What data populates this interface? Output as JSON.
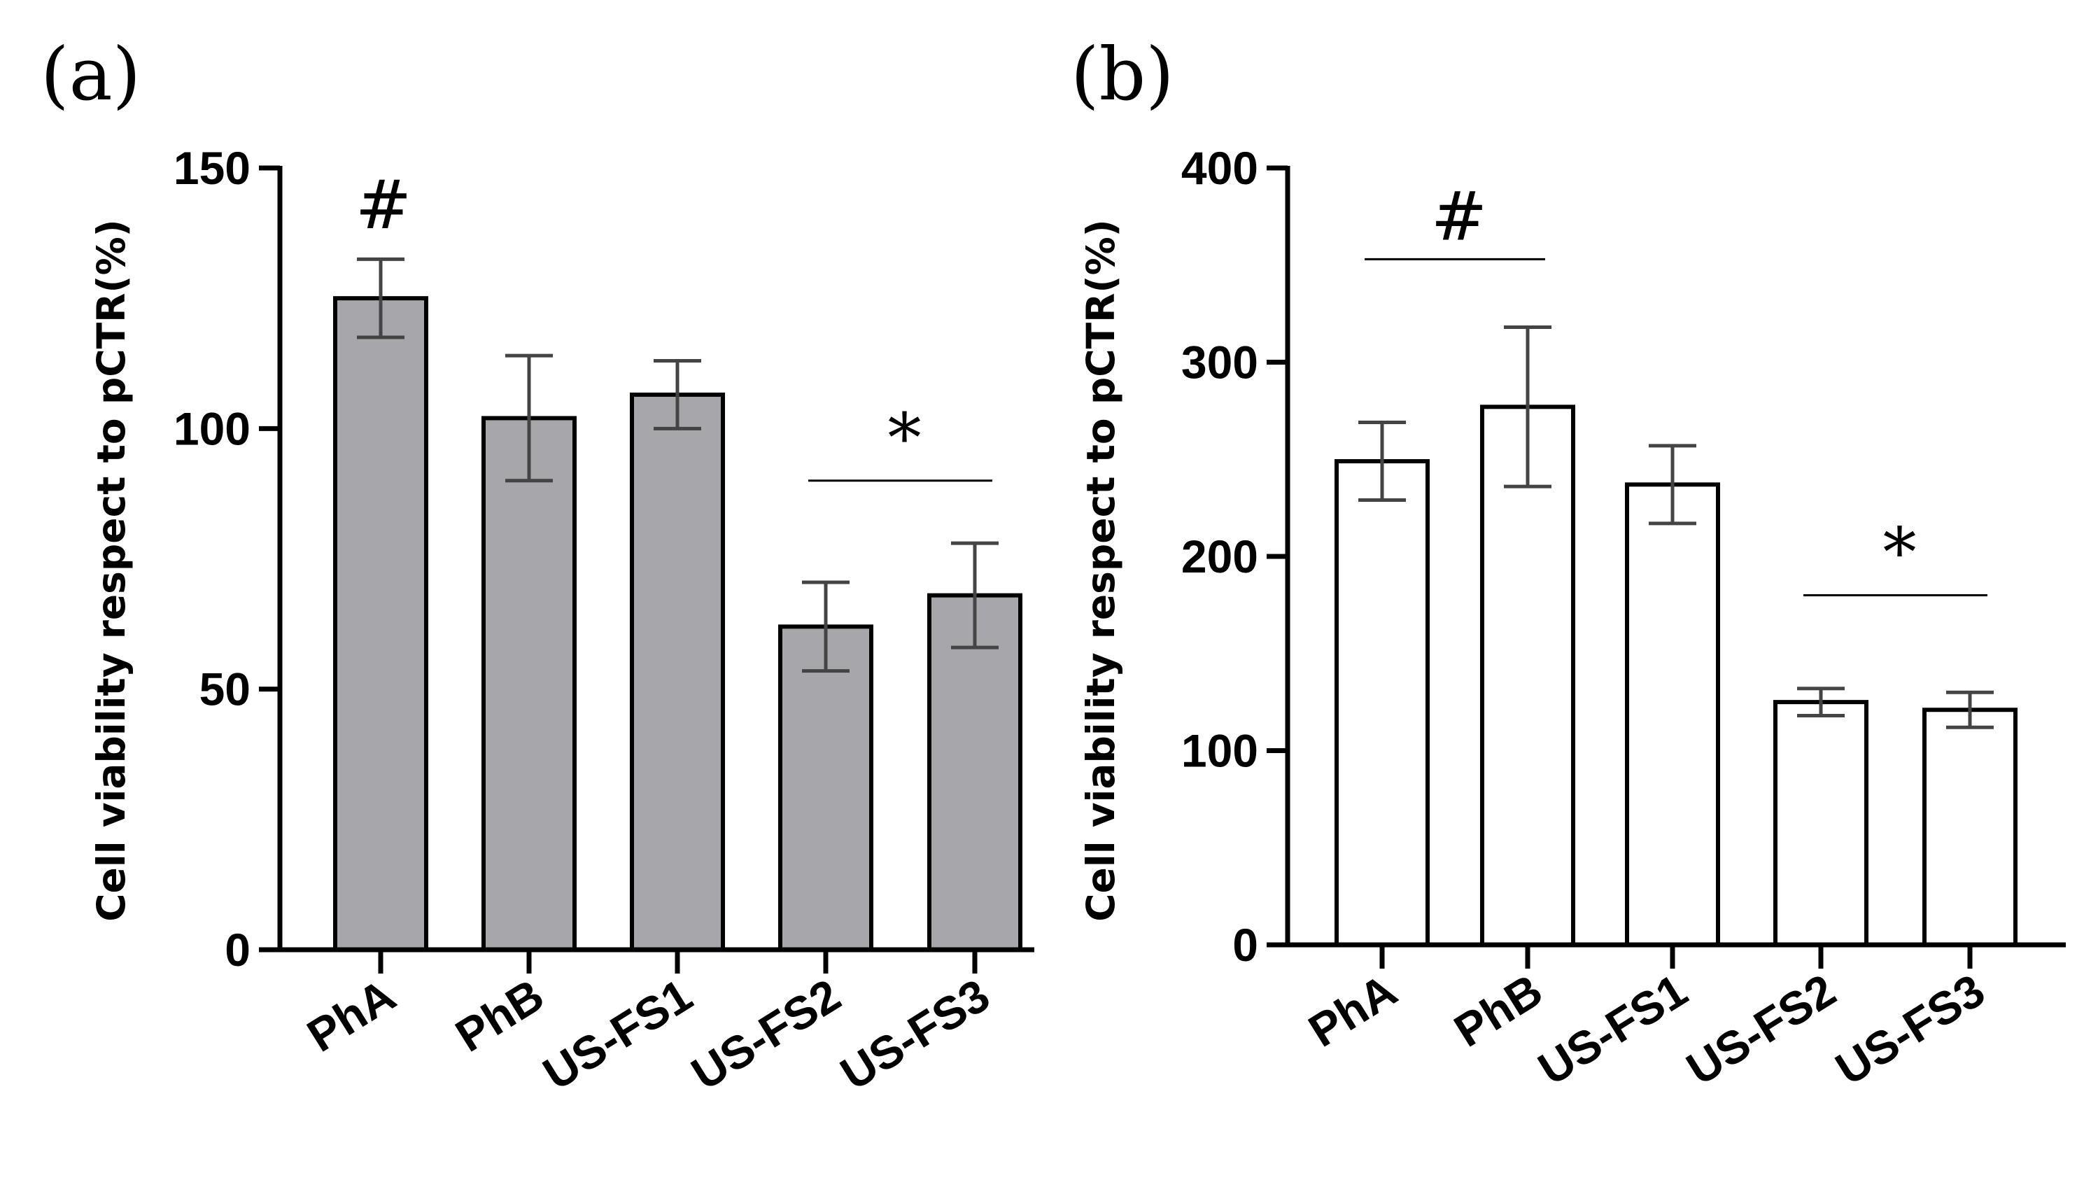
{
  "chart_data": [
    {
      "panel": "(a)",
      "type": "bar",
      "ylabel": "Cell viability respect to pCTR(%)",
      "ylim": [
        0,
        150
      ],
      "yticks": [
        "0",
        "50",
        "100",
        "150"
      ],
      "categories": [
        "PhA",
        "PhB",
        "US-FS1",
        "US-FS2",
        "US-FS3"
      ],
      "values": [
        125,
        102,
        106.5,
        62,
        68
      ],
      "errors": [
        7.5,
        12,
        6.5,
        8.5,
        10
      ],
      "bar_color": "#a7a6ab",
      "annotations": [
        {
          "symbol": "#",
          "categories": [
            "PhA"
          ],
          "value": 143,
          "line": false
        },
        {
          "symbol": "*",
          "categories": [
            "US-FS2",
            "US-FS3"
          ],
          "value": 90,
          "line": true
        }
      ]
    },
    {
      "panel": "(b)",
      "type": "bar",
      "ylabel": "Cell viability respect to pCTR(%)",
      "ylim": [
        0,
        400
      ],
      "yticks": [
        "0",
        "100",
        "200",
        "300",
        "400"
      ],
      "categories": [
        "PhA",
        "PhB",
        "US-FS1",
        "US-FS2",
        "US-FS3"
      ],
      "values": [
        249,
        277,
        237,
        125,
        121
      ],
      "errors": [
        20,
        41,
        20,
        7,
        9
      ],
      "bar_color": "#ffffff",
      "annotations": [
        {
          "symbol": "#",
          "categories": [
            "PhA",
            "PhB"
          ],
          "value": 353,
          "line": true
        },
        {
          "symbol": "*",
          "categories": [
            "US-FS2",
            "US-FS3"
          ],
          "value": 180,
          "line": true
        }
      ]
    }
  ]
}
